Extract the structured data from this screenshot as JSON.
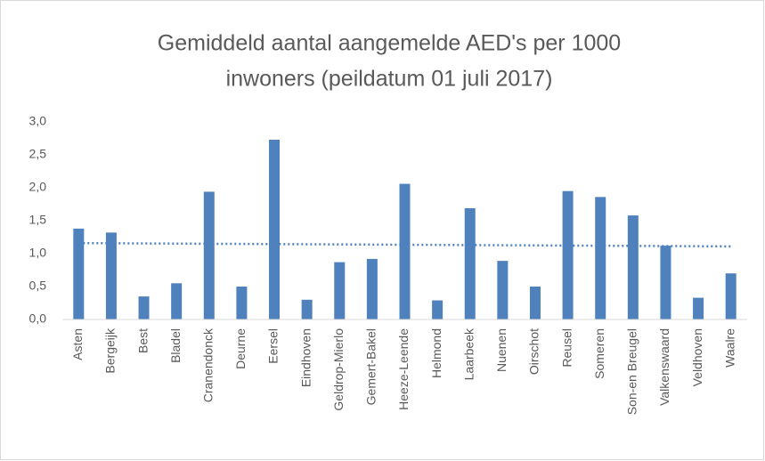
{
  "chart_data": {
    "type": "bar",
    "title": [
      "Gemiddeld aantal aangemelde AED's per 1000",
      "inwoners (peildatum 01 juli 2017)"
    ],
    "categories": [
      "Asten",
      "Bergeijk",
      "Best",
      "Bladel",
      "Cranendonck",
      "Deurne",
      "Eersel",
      "Eindhoven",
      "Geldrop-Mierlo",
      "Gemert-Bakel",
      "Heeze-Leende",
      "Helmond",
      "Laarbeek",
      "Nuenen",
      "Oirschot",
      "Reusel",
      "Someren",
      "Son-en Breugel",
      "Valkenswaard",
      "Veldhoven",
      "Waalre"
    ],
    "values": [
      1.38,
      1.32,
      0.35,
      0.55,
      1.94,
      0.5,
      2.73,
      0.3,
      0.87,
      0.92,
      2.06,
      0.29,
      1.69,
      0.89,
      0.5,
      1.95,
      1.86,
      1.58,
      1.12,
      0.33,
      0.7
    ],
    "color": "#4f81bd",
    "trendline": {
      "values": [
        1.16,
        1.11
      ],
      "color": "#4f81bd",
      "style": "dotted"
    },
    "ylim": [
      0,
      3
    ],
    "yticks": [
      {
        "value": 0,
        "label": "0,0"
      },
      {
        "value": 0.5,
        "label": "0,5"
      },
      {
        "value": 1,
        "label": "1,0"
      },
      {
        "value": 1.5,
        "label": "1,5"
      },
      {
        "value": 2,
        "label": "2,0"
      },
      {
        "value": 2.5,
        "label": "2,5"
      },
      {
        "value": 3,
        "label": "3,0"
      }
    ],
    "grid": false
  }
}
